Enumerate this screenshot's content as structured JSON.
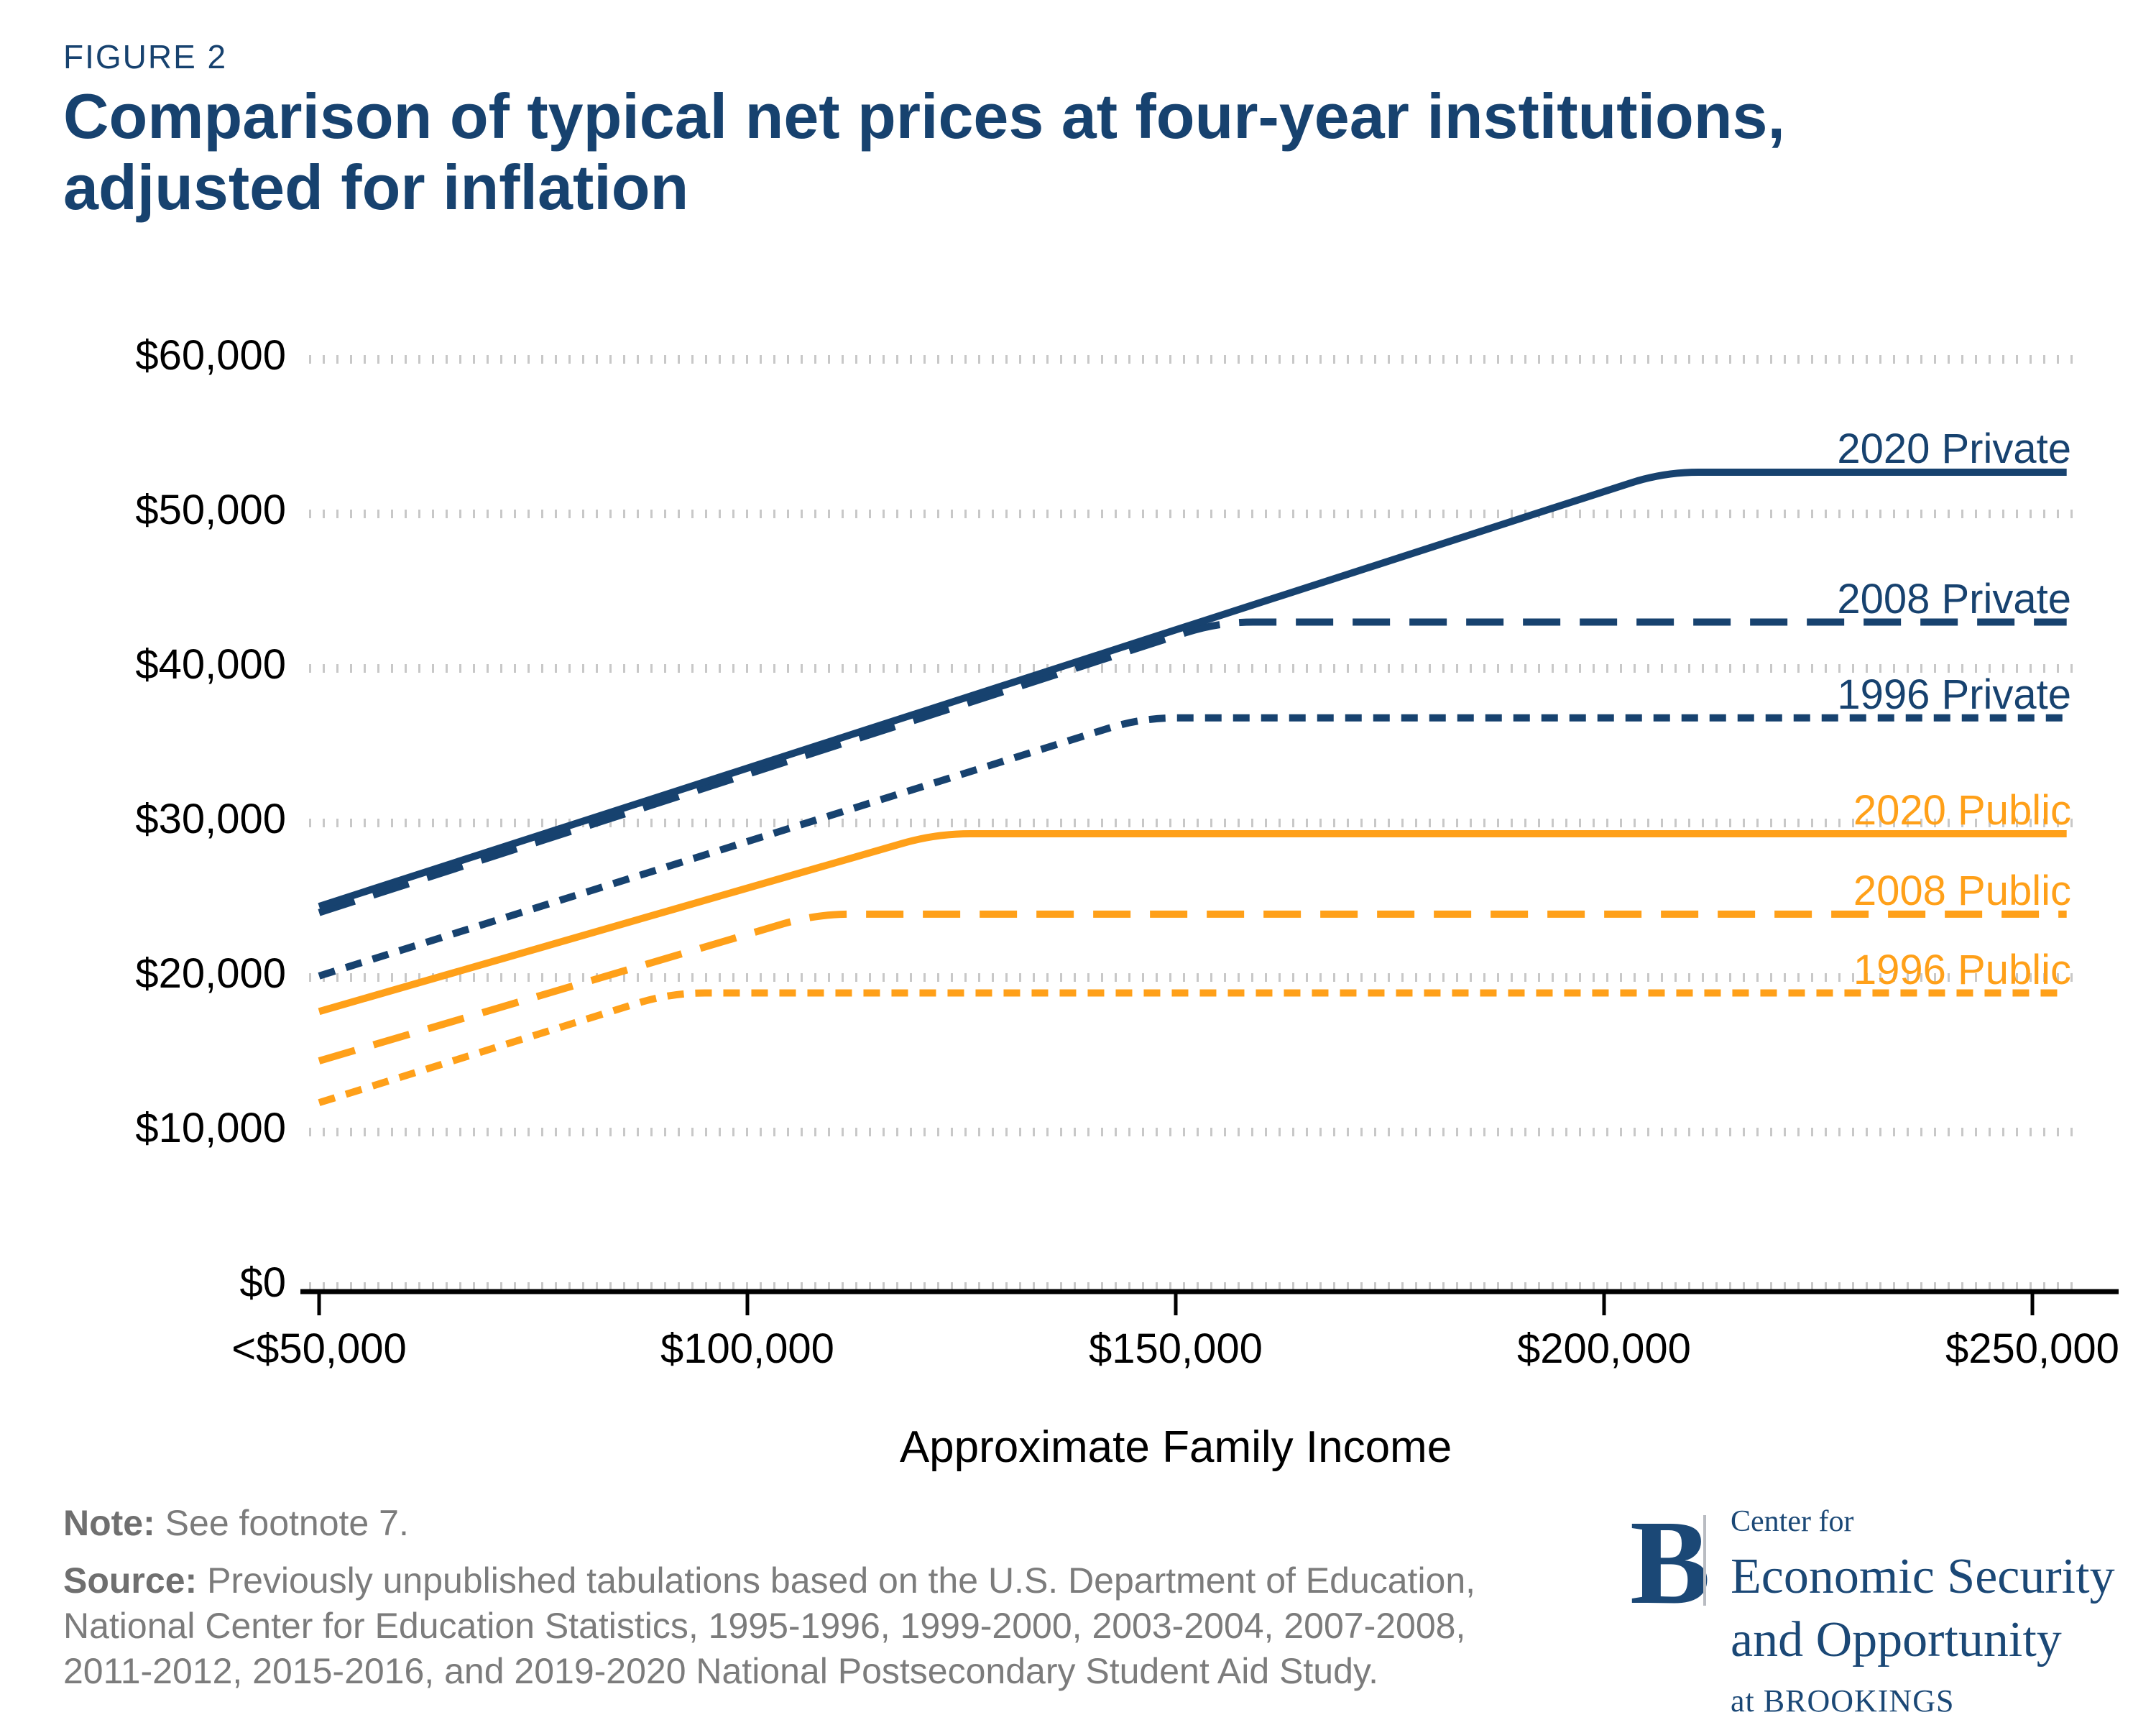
{
  "page": {
    "figure_label": "FIGURE 2",
    "title_line1": "Comparison of typical net prices at four-year institutions,",
    "title_line2": "adjusted for inflation"
  },
  "colors": {
    "navy": "#17426F",
    "orange": "#FFA019",
    "gridline_gray": "#C8C8C8",
    "axis_black": "#000000",
    "note_gray": "#7C7C7C"
  },
  "chart_data": {
    "type": "line",
    "title": "Comparison of typical net prices at four-year institutions, adjusted for inflation",
    "xlabel": "Approximate Family Income",
    "ylabel": "",
    "grid": "horizontal dotted gridlines",
    "legend_position": "right-end inline labels",
    "x_tick_labels": [
      "<$50,000",
      "$100,000",
      "$150,000",
      "$200,000",
      "$250,000"
    ],
    "x_tick_values_thousands": [
      50,
      100,
      150,
      200,
      250
    ],
    "xlim_thousands": [
      50,
      254
    ],
    "y_tick_labels": [
      "$0",
      "$10,000",
      "$20,000",
      "$30,000",
      "$40,000",
      "$50,000",
      "$60,000"
    ],
    "y_tick_values": [
      0,
      10000,
      20000,
      30000,
      40000,
      50000,
      60000
    ],
    "ylim": [
      0,
      60000
    ],
    "series": [
      {
        "name": "2020 Private",
        "color": "#17426F",
        "dash": "solid",
        "points": [
          [
            50,
            24600
          ],
          [
            207,
            52700
          ],
          [
            254,
            52700
          ]
        ]
      },
      {
        "name": "2008 Private",
        "color": "#17426F",
        "dash": "dashed",
        "points": [
          [
            50,
            24200
          ],
          [
            155,
            43000
          ],
          [
            254,
            43000
          ]
        ]
      },
      {
        "name": "1996 Private",
        "color": "#17426F",
        "dash": "dotted",
        "points": [
          [
            50,
            20100
          ],
          [
            146,
            36800
          ],
          [
            254,
            36800
          ]
        ]
      },
      {
        "name": "2020 Public",
        "color": "#FFA019",
        "dash": "solid",
        "points": [
          [
            50,
            17800
          ],
          [
            122,
            29300
          ],
          [
            254,
            29300
          ]
        ]
      },
      {
        "name": "2008 Public",
        "color": "#FFA019",
        "dash": "dashed",
        "points": [
          [
            50,
            14600
          ],
          [
            108,
            24100
          ],
          [
            254,
            24100
          ]
        ]
      },
      {
        "name": "1996 Public",
        "color": "#FFA019",
        "dash": "dotted",
        "points": [
          [
            50,
            11900
          ],
          [
            91,
            19000
          ],
          [
            254,
            19000
          ]
        ]
      }
    ]
  },
  "footer": {
    "note_label": "Note:",
    "note_text": "See footnote 7.",
    "source_label": "Source:",
    "source_text": "Previously unpublished tabulations based on the U.S. Department of Education, National Center for Education Statistics, 1995-1996, 1999-2000, 2003-2004, 2007-2008, 2011-2012, 2015-2016, and 2019-2020 National Postsecondary Student Aid Study."
  },
  "logo": {
    "b": "B",
    "center_for": "Center for",
    "org_name": "Economic Security and Opportunity",
    "at_brookings": "at BROOKINGS"
  }
}
